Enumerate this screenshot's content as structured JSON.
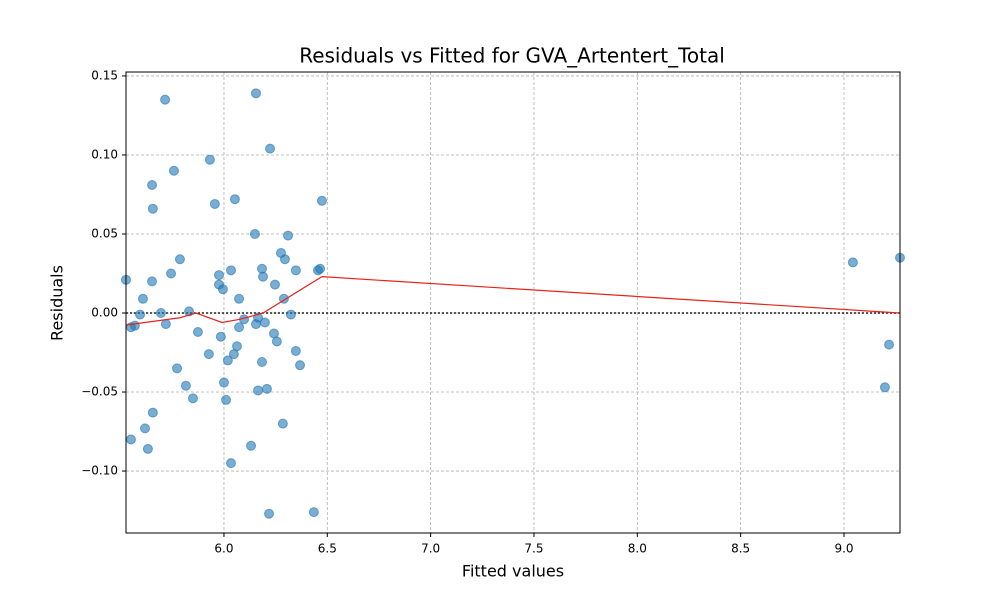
{
  "chart_data": {
    "type": "scatter",
    "title": "Residuals vs Fitted for GVA_Artentert_Total",
    "xlabel": "Fitted values",
    "ylabel": "Residuals",
    "xlim": [
      5.526,
      9.271
    ],
    "ylim": [
      -0.1392,
      0.1525
    ],
    "xticks": [
      {
        "value": 6.0,
        "label": "6.0"
      },
      {
        "value": 6.5,
        "label": "6.5"
      },
      {
        "value": 7.0,
        "label": "7.0"
      },
      {
        "value": 7.5,
        "label": "7.5"
      },
      {
        "value": 8.0,
        "label": "8.0"
      },
      {
        "value": 8.5,
        "label": "8.5"
      },
      {
        "value": 9.0,
        "label": "9.0"
      }
    ],
    "yticks": [
      {
        "value": -0.1,
        "label": "−0.10"
      },
      {
        "value": -0.05,
        "label": "−0.05"
      },
      {
        "value": 0,
        "label": "0.00"
      },
      {
        "value": 0.05,
        "label": "0.05"
      },
      {
        "value": 0.1,
        "label": "0.10"
      },
      {
        "value": 0.15,
        "label": "0.15"
      }
    ],
    "grid": true,
    "hline": 0,
    "series": [
      {
        "type": "scatter",
        "color": "#1f77b4",
        "x": [
          5.526,
          5.55,
          5.569,
          5.55,
          5.594,
          5.608,
          5.618,
          5.632,
          5.652,
          5.652,
          5.656,
          5.656,
          5.695,
          5.715,
          5.719,
          5.744,
          5.758,
          5.773,
          5.787,
          5.816,
          5.831,
          5.85,
          5.874,
          5.927,
          5.932,
          5.956,
          5.976,
          5.976,
          5.985,
          5.995,
          6.0,
          6.01,
          6.019,
          6.034,
          6.034,
          6.048,
          6.053,
          6.063,
          6.073,
          6.073,
          6.097,
          6.131,
          6.15,
          6.155,
          6.155,
          6.165,
          6.165,
          6.184,
          6.184,
          6.189,
          6.198,
          6.208,
          6.218,
          6.223,
          6.242,
          6.247,
          6.256,
          6.276,
          6.285,
          6.29,
          6.295,
          6.31,
          6.324,
          6.348,
          6.348,
          6.368,
          6.435,
          6.455,
          6.465,
          6.474,
          9.043,
          9.198,
          9.218,
          9.271
        ],
        "values": [
          0.021,
          -0.009,
          -0.008,
          -0.08,
          -0.001,
          0.009,
          -0.073,
          -0.086,
          0.081,
          0.02,
          0.066,
          -0.063,
          0.0,
          0.135,
          -0.007,
          0.025,
          0.09,
          -0.035,
          0.034,
          -0.046,
          0.001,
          -0.054,
          -0.012,
          -0.026,
          0.097,
          0.069,
          0.024,
          0.018,
          -0.015,
          0.015,
          -0.044,
          -0.055,
          -0.03,
          0.027,
          -0.095,
          -0.026,
          0.072,
          -0.021,
          -0.009,
          0.009,
          -0.004,
          -0.084,
          0.05,
          0.139,
          -0.007,
          -0.003,
          -0.049,
          -0.031,
          0.028,
          0.023,
          -0.006,
          -0.048,
          -0.127,
          0.104,
          -0.013,
          0.018,
          -0.018,
          0.038,
          -0.07,
          0.009,
          0.034,
          0.049,
          -0.001,
          -0.024,
          0.027,
          -0.033,
          -0.126,
          0.027,
          0.028,
          0.071,
          0.032,
          -0.047,
          -0.02,
          0.035
        ]
      },
      {
        "type": "line",
        "color": "#e8231c",
        "x": [
          5.526,
          5.787,
          5.865,
          5.99,
          6.077,
          6.189,
          6.474,
          9.271
        ],
        "values": [
          -0.0076,
          -0.003,
          0.0,
          -0.006,
          -0.004,
          0.0,
          0.023,
          0.0
        ]
      }
    ]
  }
}
